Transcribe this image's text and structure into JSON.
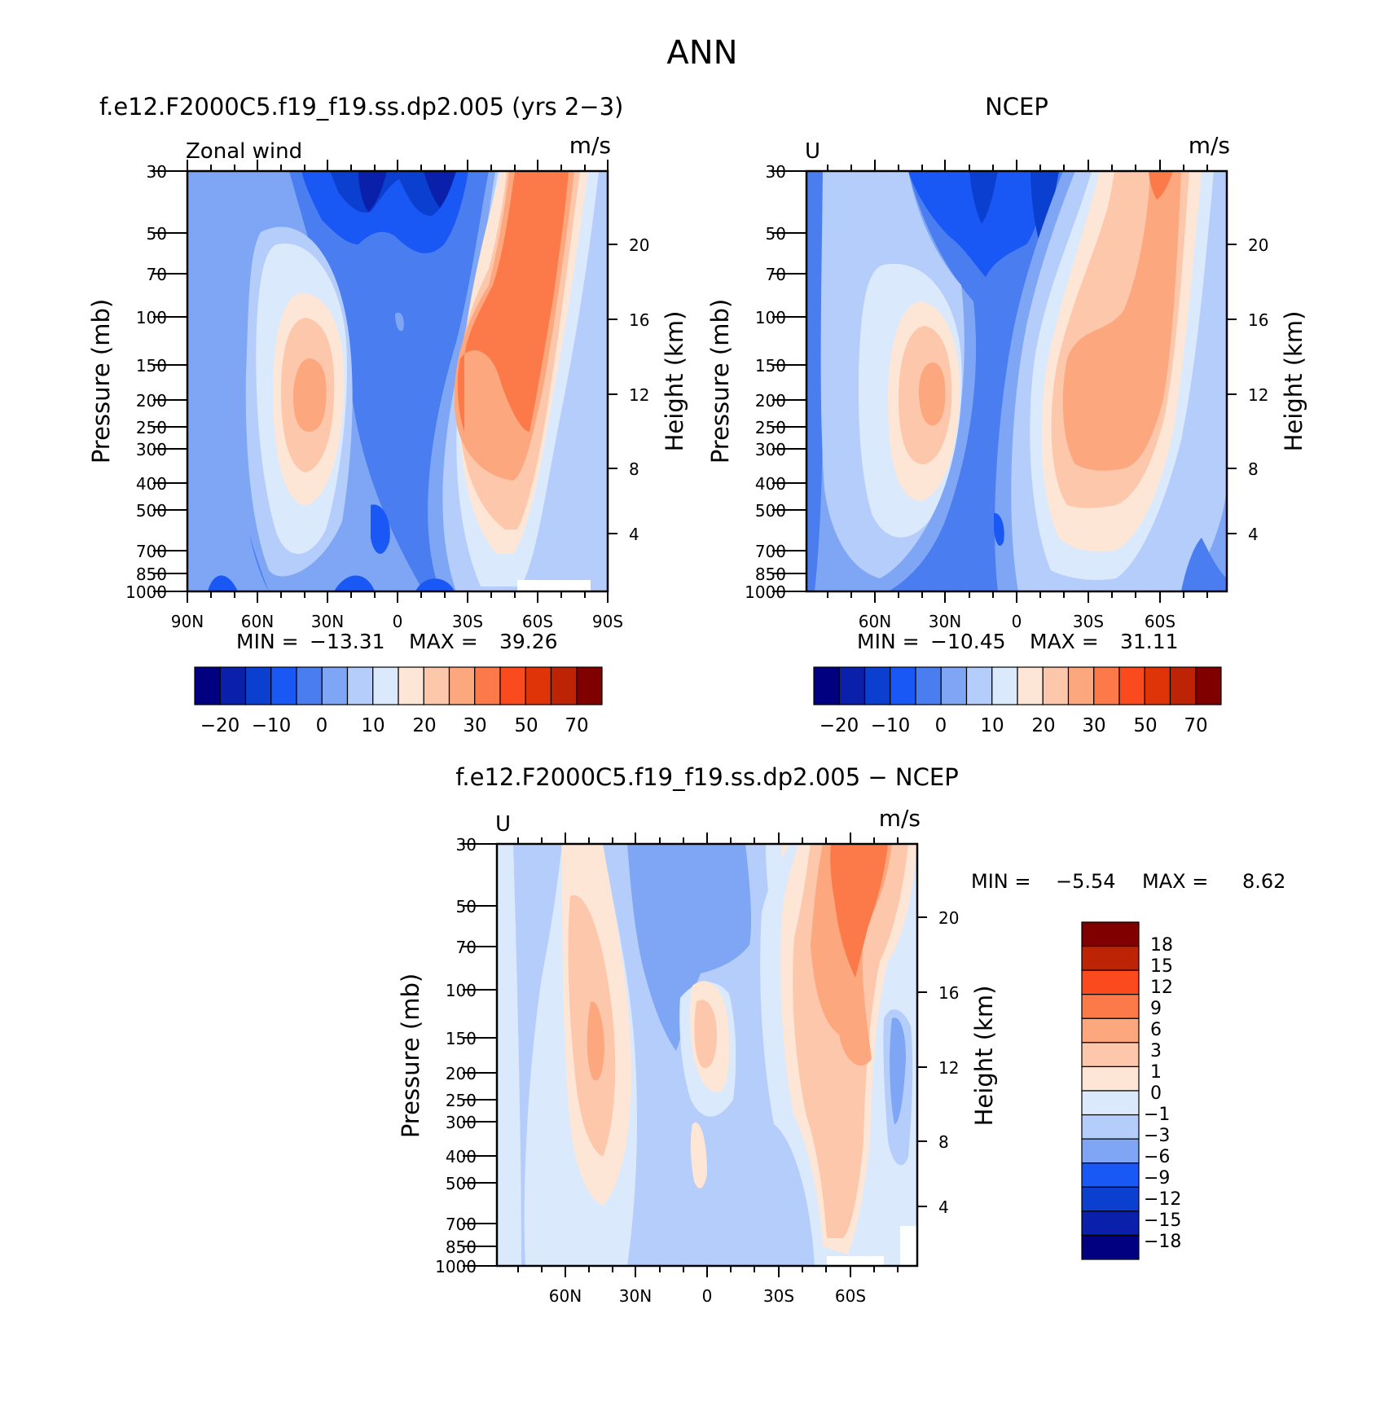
{
  "figure": {
    "title": "ANN"
  },
  "colors": {
    "full_field": [
      "#000080",
      "#0a1faa",
      "#0a3fd0",
      "#1a58f5",
      "#4a7ef0",
      "#7ea6f5",
      "#b4cdfa",
      "#dbe9fc",
      "#fee6d6",
      "#fdc7ab",
      "#fca77e",
      "#fc7a4a",
      "#fa4a1e",
      "#df3308",
      "#bd2406",
      "#800000"
    ],
    "difference": [
      "#000080",
      "#0a1faa",
      "#0a3fd0",
      "#1a58f5",
      "#7ea6f5",
      "#b4cdfa",
      "#dbe9fc",
      "#fee6d6",
      "#fdc7ab",
      "#fca77e",
      "#fc7a4a",
      "#fa4a1e",
      "#bd2406",
      "#800000"
    ]
  },
  "chart_data": [
    {
      "type": "heatmap",
      "title": "f.e12.F2000C5.f19_f19.ss.dp2.005 (yrs 2−3)",
      "left_label": "Zonal wind",
      "units": "m/s",
      "ylabel": "Pressure (mb)",
      "ylabel_right": "Height (km)",
      "y_ticks": [
        "30",
        "50",
        "70",
        "100",
        "150",
        "200",
        "250",
        "300",
        "400",
        "500",
        "700",
        "850",
        "1000"
      ],
      "y_right_ticks": [
        "20",
        "16",
        "12",
        "8",
        "4"
      ],
      "x_ticks": [
        "90N",
        "60N",
        "30N",
        "0",
        "30S",
        "60S",
        "90S"
      ],
      "min_label": "MIN =",
      "min_value": "−13.31",
      "max_label": "MAX =",
      "max_value": "39.26",
      "colorbar_labels": [
        "−20",
        "−10",
        "0",
        "10",
        "20",
        "30",
        "50",
        "70"
      ],
      "features": [
        {
          "lat": -35,
          "p": 180,
          "u": 39.26
        },
        {
          "lat": 38,
          "p": 200,
          "u": 28
        },
        {
          "lat": 5,
          "p": 30,
          "u": -13.31
        }
      ]
    },
    {
      "type": "heatmap",
      "title": "NCEP",
      "left_label": "U",
      "units": "m/s",
      "ylabel": "Pressure (mb)",
      "ylabel_right": "Height (km)",
      "y_ticks": [
        "30",
        "50",
        "70",
        "100",
        "150",
        "200",
        "250",
        "300",
        "400",
        "500",
        "700",
        "850",
        "1000"
      ],
      "y_right_ticks": [
        "20",
        "16",
        "12",
        "8",
        "4"
      ],
      "x_ticks": [
        "60N",
        "30N",
        "0",
        "30S",
        "60S"
      ],
      "min_label": "MIN =",
      "min_value": "−10.45",
      "max_label": "MAX =",
      "max_value": "31.11",
      "colorbar_labels": [
        "−20",
        "−10",
        "0",
        "10",
        "20",
        "30",
        "50",
        "70"
      ],
      "features": [
        {
          "lat": -32,
          "p": 200,
          "u": 31.11
        },
        {
          "lat": 33,
          "p": 200,
          "u": 28
        },
        {
          "lat": 0,
          "p": 30,
          "u": -10.45
        }
      ]
    },
    {
      "type": "heatmap",
      "title": "f.e12.F2000C5.f19_f19.ss.dp2.005 − NCEP",
      "left_label": "U",
      "units": "m/s",
      "ylabel": "Pressure (mb)",
      "ylabel_right": "Height (km)",
      "y_ticks": [
        "30",
        "50",
        "70",
        "100",
        "150",
        "200",
        "250",
        "300",
        "400",
        "500",
        "700",
        "850",
        "1000"
      ],
      "y_right_ticks": [
        "20",
        "16",
        "12",
        "8",
        "4"
      ],
      "x_ticks": [
        "60N",
        "30N",
        "0",
        "30S",
        "60S"
      ],
      "min_label": "MIN =",
      "min_value": "−5.54",
      "max_label": "MAX =",
      "max_value": "8.62",
      "colorbar_labels": [
        "18",
        "15",
        "12",
        "9",
        "6",
        "3",
        "1",
        "0",
        "−1",
        "−3",
        "−6",
        "−9",
        "−12",
        "−15",
        "−18"
      ],
      "features": [
        {
          "lat": -60,
          "p": 40,
          "u": 8.62
        },
        {
          "lat": 45,
          "p": 150,
          "u": 5
        },
        {
          "lat": 10,
          "p": 60,
          "u": -5.54
        }
      ]
    }
  ]
}
